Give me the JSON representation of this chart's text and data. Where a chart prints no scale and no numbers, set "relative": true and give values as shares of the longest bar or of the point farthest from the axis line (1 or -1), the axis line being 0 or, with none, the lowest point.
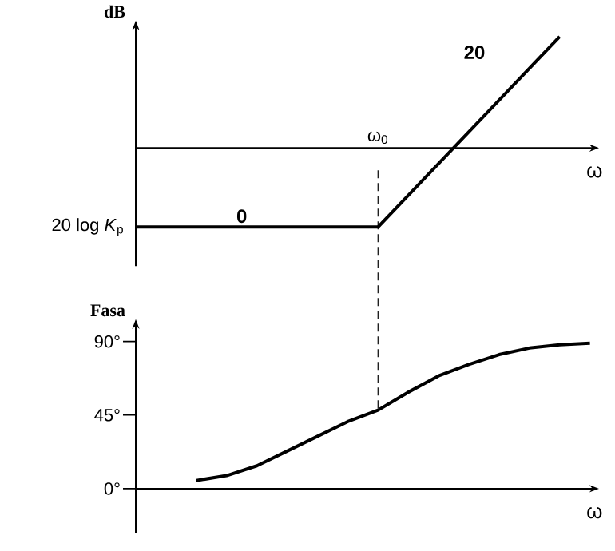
{
  "chart_data": [
    {
      "type": "line",
      "relative": true,
      "categories": [
        null,
        null,
        null,
        null,
        null,
        null,
        null,
        null,
        null,
        null,
        null,
        null,
        null,
        null,
        null,
        null
      ],
      "values": [
        -0.71,
        -0.71,
        -0.71,
        -0.71,
        -0.71,
        -0.71,
        -0.71,
        -0.71,
        -0.71,
        -0.425,
        -0.14,
        0.145,
        0.43,
        0.715,
        1,
        null
      ],
      "color": "#000000",
      "ylabel": "dB",
      "xlabel": "ω",
      "annotations": [
        "20 log *K*$_{p}$",
        "0",
        "20",
        "ω$_{0}$"
      ]
    },
    {
      "type": "line",
      "categories": [
        null,
        null,
        null,
        null,
        null,
        null,
        null,
        null,
        null,
        null,
        null,
        null,
        null,
        null,
        null,
        null
      ],
      "values": [
        null,
        null,
        5,
        8,
        14,
        23,
        32,
        41,
        48,
        59,
        69,
        76,
        82,
        86,
        88,
        89
      ],
      "color": "#000000",
      "ylabel": "Fasa",
      "xlabel": "ω",
      "ylim": [
        -27,
        100
      ],
      "yticks": [
        {
          "value": 0,
          "label": "0°"
        },
        {
          "value": 45,
          "label": "45°"
        },
        {
          "value": 90,
          "label": "90°"
        }
      ],
      "tick_labels": "y"
    }
  ]
}
